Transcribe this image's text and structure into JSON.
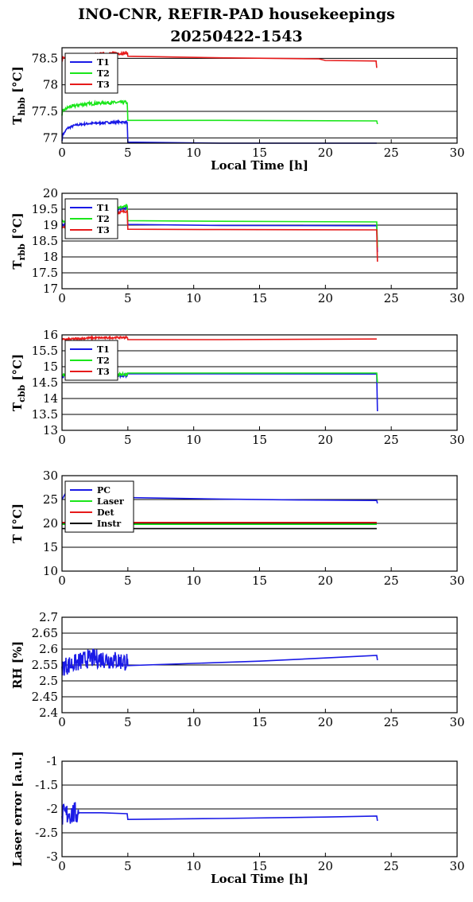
{
  "figure": {
    "title_line1": "INO-CNR, REFIR-PAD housekeepings",
    "title_line2": "20250422-1543"
  },
  "colors": {
    "blue": "#1a1ae6",
    "green": "#1ae61a",
    "red": "#e61a1a",
    "black": "#000000"
  },
  "chart_data": [
    {
      "type": "line",
      "ylabel": "T_hbb [°C]",
      "ylabel_main": "T",
      "ylabel_sub": "hbb",
      "ylabel_unit": "[°C]",
      "xlabel": "Local Time [h]",
      "xlim": [
        0,
        30
      ],
      "ylim": [
        76.9,
        78.7
      ],
      "xticks": [
        "0",
        "5",
        "10",
        "15",
        "20",
        "25",
        "30"
      ],
      "yticks": [
        {
          "v": 77,
          "l": "77"
        },
        {
          "v": 77.5,
          "l": "77.5"
        },
        {
          "v": 78,
          "l": "78"
        },
        {
          "v": 78.5,
          "l": "78.5"
        }
      ],
      "grid": "horizontal",
      "legend": "top-left",
      "series": [
        {
          "name": "T1",
          "color": "#1a1ae6",
          "points": [
            [
              0,
              76.94
            ],
            [
              0.05,
              77.05
            ],
            [
              0.4,
              77.18
            ],
            [
              1,
              77.24
            ],
            [
              2,
              77.27
            ],
            [
              3.5,
              77.29
            ],
            [
              4.95,
              77.3
            ],
            [
              5,
              76.92
            ],
            [
              12,
              76.9
            ],
            [
              20,
              76.89
            ],
            [
              23.9,
              76.88
            ]
          ],
          "noise": 0.02,
          "noise_x": [
            0,
            5
          ]
        },
        {
          "name": "T2",
          "color": "#1ae61a",
          "points": [
            [
              0,
              77.42
            ],
            [
              0.05,
              77.5
            ],
            [
              0.5,
              77.58
            ],
            [
              1.5,
              77.63
            ],
            [
              3,
              77.66
            ],
            [
              4.95,
              77.67
            ],
            [
              5,
              77.33
            ],
            [
              12,
              77.33
            ],
            [
              23.9,
              77.32
            ],
            [
              23.95,
              77.26
            ]
          ],
          "noise": 0.03,
          "noise_x": [
            0,
            5
          ]
        },
        {
          "name": "T3",
          "color": "#e61a1a",
          "points": [
            [
              0,
              78.5
            ],
            [
              1,
              78.52
            ],
            [
              2,
              78.55
            ],
            [
              3,
              78.58
            ],
            [
              4.95,
              78.6
            ],
            [
              5,
              78.54
            ],
            [
              12,
              78.51
            ],
            [
              19.5,
              78.49
            ],
            [
              20,
              78.46
            ],
            [
              23.85,
              78.45
            ],
            [
              23.9,
              78.32
            ]
          ],
          "noise": 0.03,
          "noise_x": [
            0,
            5
          ]
        }
      ]
    },
    {
      "type": "line",
      "ylabel": "T_rbb [°C]",
      "ylabel_main": "T",
      "ylabel_sub": "rbb",
      "ylabel_unit": "[°C]",
      "xlabel": "",
      "xlim": [
        0,
        30
      ],
      "ylim": [
        17,
        20
      ],
      "xticks": [
        "0",
        "5",
        "10",
        "15",
        "20",
        "25",
        "30"
      ],
      "yticks": [
        {
          "v": 17,
          "l": "17"
        },
        {
          "v": 17.5,
          "l": "17.5"
        },
        {
          "v": 18,
          "l": "18"
        },
        {
          "v": 18.5,
          "l": "18.5"
        },
        {
          "v": 19,
          "l": "19"
        },
        {
          "v": 19.5,
          "l": "19.5"
        },
        {
          "v": 20,
          "l": "20"
        }
      ],
      "grid": "horizontal",
      "legend": "top-left",
      "series": [
        {
          "name": "T1",
          "color": "#1a1ae6",
          "points": [
            [
              0,
              19.0
            ],
            [
              2,
              19.3
            ],
            [
              4.95,
              19.55
            ],
            [
              5,
              19.02
            ],
            [
              12,
              18.99
            ],
            [
              23.9,
              18.98
            ],
            [
              23.95,
              18.15
            ]
          ],
          "noise": 0.04,
          "noise_x": [
            0,
            5
          ]
        },
        {
          "name": "T2",
          "color": "#1ae61a",
          "points": [
            [
              0,
              19.1
            ],
            [
              2,
              19.35
            ],
            [
              4.95,
              19.6
            ],
            [
              5,
              19.14
            ],
            [
              12,
              19.12
            ],
            [
              23.9,
              19.1
            ],
            [
              23.95,
              18.3
            ]
          ],
          "noise": 0.04,
          "noise_x": [
            0,
            5
          ]
        },
        {
          "name": "T3",
          "color": "#e61a1a",
          "points": [
            [
              0,
              18.9
            ],
            [
              2,
              19.2
            ],
            [
              4.95,
              19.45
            ],
            [
              5,
              18.87
            ],
            [
              12,
              18.86
            ],
            [
              23.9,
              18.85
            ],
            [
              23.95,
              17.85
            ]
          ],
          "noise": 0.04,
          "noise_x": [
            0,
            5
          ]
        }
      ]
    },
    {
      "type": "line",
      "ylabel": "T_cbb [°C]",
      "ylabel_main": "T",
      "ylabel_sub": "cbb",
      "ylabel_unit": "[°C]",
      "xlabel": "",
      "xlim": [
        0,
        30
      ],
      "ylim": [
        13,
        16
      ],
      "xticks": [
        "0",
        "5",
        "10",
        "15",
        "20",
        "25",
        "30"
      ],
      "yticks": [
        {
          "v": 13,
          "l": "13"
        },
        {
          "v": 13.5,
          "l": "13.5"
        },
        {
          "v": 14,
          "l": "14"
        },
        {
          "v": 14.5,
          "l": "14.5"
        },
        {
          "v": 15,
          "l": "15"
        },
        {
          "v": 15.5,
          "l": "15.5"
        },
        {
          "v": 16,
          "l": "16"
        }
      ],
      "grid": "horizontal",
      "legend": "top-left",
      "series": [
        {
          "name": "T1",
          "color": "#1a1ae6",
          "points": [
            [
              0,
              14.7
            ],
            [
              4.95,
              14.72
            ],
            [
              5,
              14.78
            ],
            [
              23.9,
              14.77
            ],
            [
              23.95,
              13.6
            ]
          ],
          "noise": 0.04,
          "noise_x": [
            0,
            5
          ]
        },
        {
          "name": "T2",
          "color": "#1ae61a",
          "points": [
            [
              0,
              14.75
            ],
            [
              4.95,
              14.76
            ],
            [
              5,
              14.8
            ],
            [
              23.9,
              14.8
            ],
            [
              23.95,
              14.5
            ]
          ],
          "noise": 0.04,
          "noise_x": [
            0,
            5
          ]
        },
        {
          "name": "T3",
          "color": "#e61a1a",
          "points": [
            [
              0,
              15.85
            ],
            [
              2,
              15.9
            ],
            [
              4.95,
              15.92
            ],
            [
              5,
              15.85
            ],
            [
              12,
              15.85
            ],
            [
              23.9,
              15.87
            ]
          ],
          "noise": 0.03,
          "noise_x": [
            0,
            5
          ]
        }
      ]
    },
    {
      "type": "line",
      "ylabel": "T [°C]",
      "ylabel_main": "T [°C]",
      "ylabel_sub": "",
      "ylabel_unit": "",
      "xlabel": "",
      "xlim": [
        0,
        30
      ],
      "ylim": [
        10,
        30
      ],
      "xticks": [
        "0",
        "5",
        "10",
        "15",
        "20",
        "25",
        "30"
      ],
      "yticks": [
        {
          "v": 10,
          "l": "10"
        },
        {
          "v": 15,
          "l": "15"
        },
        {
          "v": 20,
          "l": "20"
        },
        {
          "v": 25,
          "l": "25"
        },
        {
          "v": 30,
          "l": "30"
        }
      ],
      "grid": "horizontal",
      "legend": "top-left",
      "series": [
        {
          "name": "PC",
          "color": "#1a1ae6",
          "points": [
            [
              0,
              25.0
            ],
            [
              0.3,
              26.5
            ],
            [
              1,
              25.8
            ],
            [
              2,
              25.6
            ],
            [
              5,
              25.4
            ],
            [
              12,
              25.1
            ],
            [
              18,
              24.9
            ],
            [
              23.9,
              24.8
            ],
            [
              23.95,
              24.2
            ]
          ],
          "noise": 0,
          "noise_x": [
            0,
            0
          ]
        },
        {
          "name": "Laser",
          "color": "#1ae61a",
          "points": [
            [
              0,
              19.8
            ],
            [
              23.9,
              19.8
            ]
          ],
          "noise": 0,
          "noise_x": [
            0,
            0
          ]
        },
        {
          "name": "Det",
          "color": "#e61a1a",
          "points": [
            [
              0,
              20.2
            ],
            [
              23.9,
              20.2
            ]
          ],
          "noise": 0,
          "noise_x": [
            0,
            0
          ]
        },
        {
          "name": "Instr",
          "color": "#000000",
          "points": [
            [
              0,
              18.9
            ],
            [
              23.9,
              18.9
            ]
          ],
          "noise": 0,
          "noise_x": [
            0,
            0
          ]
        }
      ]
    },
    {
      "type": "line",
      "ylabel": "RH [%]",
      "ylabel_main": "RH [%]",
      "ylabel_sub": "",
      "ylabel_unit": "",
      "xlabel": "",
      "xlim": [
        0,
        30
      ],
      "ylim": [
        2.4,
        2.7
      ],
      "xticks": [
        "0",
        "5",
        "10",
        "15",
        "20",
        "25",
        "30"
      ],
      "yticks": [
        {
          "v": 2.4,
          "l": "2.4"
        },
        {
          "v": 2.45,
          "l": "2.45"
        },
        {
          "v": 2.5,
          "l": "2.5"
        },
        {
          "v": 2.55,
          "l": "2.55"
        },
        {
          "v": 2.6,
          "l": "2.6"
        },
        {
          "v": 2.65,
          "l": "2.65"
        },
        {
          "v": 2.7,
          "l": "2.7"
        }
      ],
      "grid": "horizontal",
      "legend": "none",
      "series": [
        {
          "name": "",
          "color": "#1a1ae6",
          "points": [
            [
              0,
              2.545
            ],
            [
              1,
              2.555
            ],
            [
              2,
              2.57
            ],
            [
              3,
              2.57
            ],
            [
              4,
              2.565
            ],
            [
              4.95,
              2.56
            ],
            [
              5,
              2.548
            ],
            [
              10,
              2.555
            ],
            [
              15,
              2.562
            ],
            [
              20,
              2.572
            ],
            [
              23.9,
              2.58
            ],
            [
              23.95,
              2.565
            ]
          ],
          "noise": 0.03,
          "noise_x": [
            0,
            5
          ]
        }
      ]
    },
    {
      "type": "line",
      "ylabel": "Laser error [a.u.]",
      "ylabel_main": "Laser error [a.u.]",
      "ylabel_sub": "",
      "ylabel_unit": "",
      "xlabel": "Local Time [h]",
      "xlim": [
        0,
        30
      ],
      "ylim": [
        -3,
        -1
      ],
      "xticks": [
        "0",
        "5",
        "10",
        "15",
        "20",
        "25",
        "30"
      ],
      "yticks": [
        {
          "v": -3,
          "l": "-3"
        },
        {
          "v": -2.5,
          "l": "-2.5"
        },
        {
          "v": -2,
          "l": "-2"
        },
        {
          "v": -1.5,
          "l": "-1.5"
        },
        {
          "v": -1,
          "l": "-1"
        }
      ],
      "grid": "horizontal",
      "legend": "none",
      "series": [
        {
          "name": "",
          "color": "#1a1ae6",
          "points": [
            [
              0,
              -2.15
            ],
            [
              0.5,
              -2.1
            ],
            [
              1.2,
              -2.1
            ],
            [
              1.3,
              -2.08
            ],
            [
              3,
              -2.08
            ],
            [
              4.95,
              -2.1
            ],
            [
              5,
              -2.22
            ],
            [
              12,
              -2.2
            ],
            [
              20,
              -2.17
            ],
            [
              23.9,
              -2.15
            ],
            [
              23.95,
              -2.25
            ]
          ],
          "noise": 0.25,
          "noise_x": [
            0,
            1.3
          ]
        }
      ]
    }
  ]
}
